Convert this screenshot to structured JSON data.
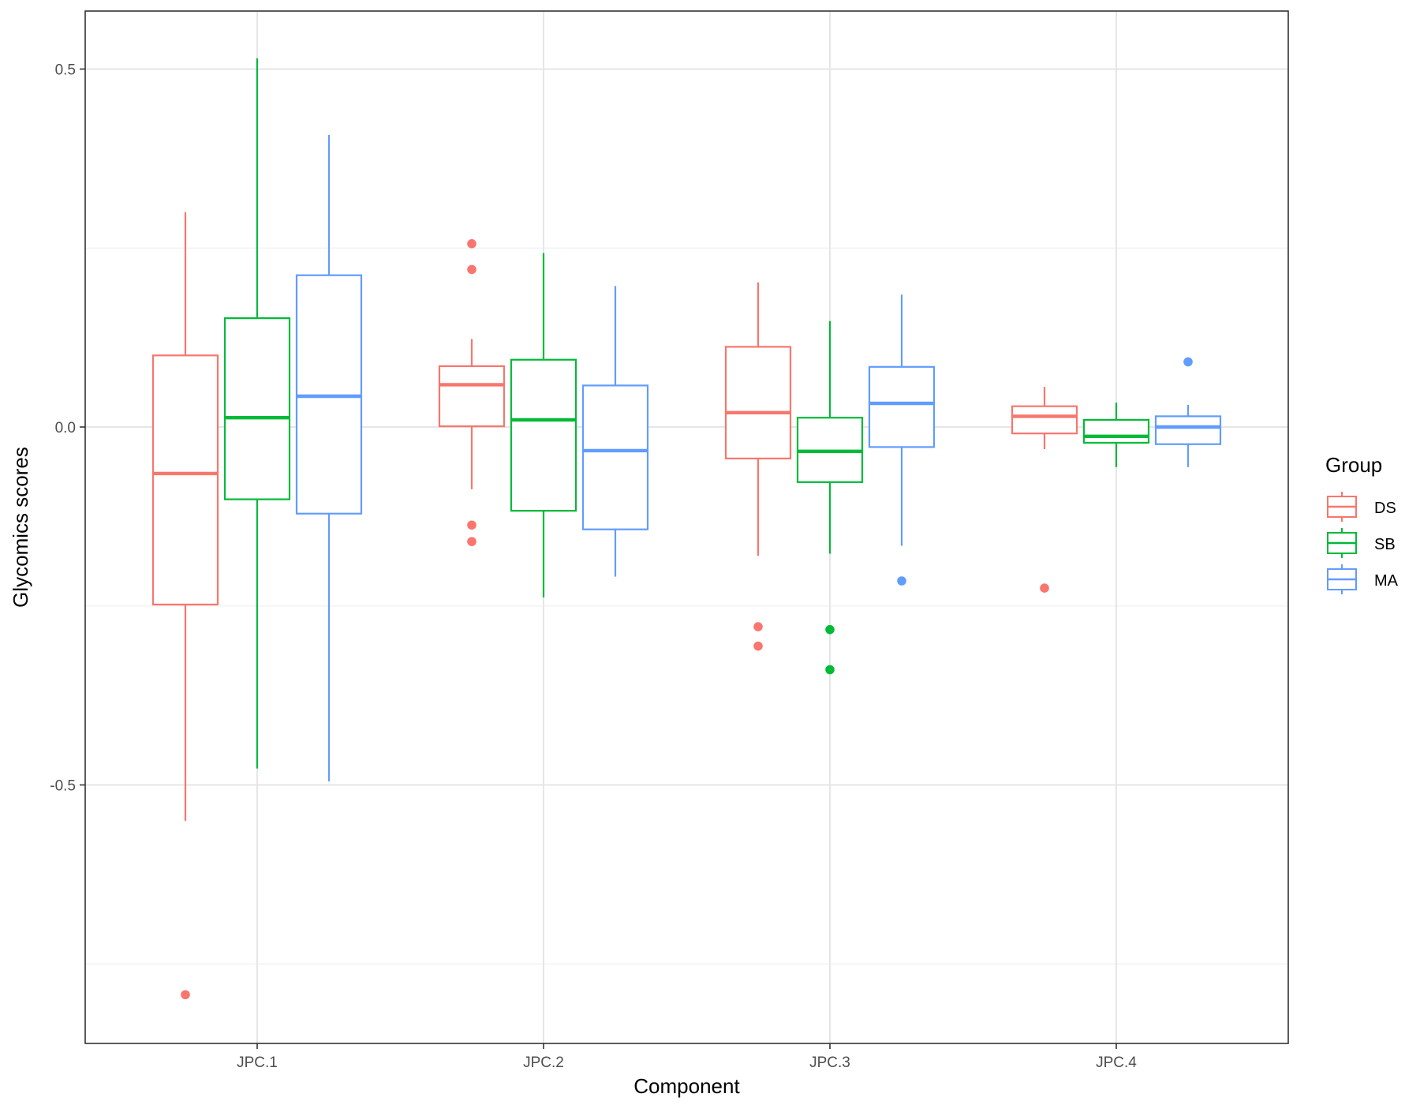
{
  "chart_data": {
    "type": "box",
    "xlabel": "Component",
    "ylabel": "Glycomics scores",
    "categories": [
      "JPC.1",
      "JPC.2",
      "JPC.3",
      "JPC.4"
    ],
    "y_ticks": [
      {
        "value": 0.5,
        "label": "0.5"
      },
      {
        "value": 0.0,
        "label": "0.0"
      },
      {
        "value": -0.5,
        "label": "-0.5"
      }
    ],
    "y_minor_ticks": [
      0.25,
      -0.25,
      -0.75
    ],
    "ylim": [
      -0.86,
      0.58
    ],
    "grid": true,
    "legend": {
      "title": "Group",
      "position": "right"
    },
    "series": [
      {
        "name": "DS",
        "color": "#F8766D",
        "boxes": [
          {
            "category": "JPC.1",
            "whisker_low": -0.55,
            "q1": -0.248,
            "median": -0.065,
            "q3": 0.1,
            "whisker_high": 0.3,
            "outliers": [
              -0.793
            ]
          },
          {
            "category": "JPC.2",
            "whisker_low": -0.087,
            "q1": 0.001,
            "median": 0.059,
            "q3": 0.085,
            "whisker_high": 0.123,
            "outliers": [
              0.256,
              0.22,
              -0.137,
              -0.16
            ]
          },
          {
            "category": "JPC.3",
            "whisker_low": -0.18,
            "q1": -0.044,
            "median": 0.02,
            "q3": 0.112,
            "whisker_high": 0.202,
            "outliers": [
              -0.279,
              -0.306
            ]
          },
          {
            "category": "JPC.4",
            "whisker_low": -0.031,
            "q1": -0.009,
            "median": 0.015,
            "q3": 0.029,
            "whisker_high": 0.056,
            "outliers": [
              -0.225
            ]
          }
        ]
      },
      {
        "name": "SB",
        "color": "#00BA38",
        "boxes": [
          {
            "category": "JPC.1",
            "whisker_low": -0.477,
            "q1": -0.101,
            "median": 0.013,
            "q3": 0.152,
            "whisker_high": 0.515,
            "outliers": []
          },
          {
            "category": "JPC.2",
            "whisker_low": -0.238,
            "q1": -0.117,
            "median": 0.01,
            "q3": 0.094,
            "whisker_high": 0.243,
            "outliers": []
          },
          {
            "category": "JPC.3",
            "whisker_low": -0.177,
            "q1": -0.077,
            "median": -0.034,
            "q3": 0.013,
            "whisker_high": 0.148,
            "outliers": [
              -0.283,
              -0.339
            ]
          },
          {
            "category": "JPC.4",
            "whisker_low": -0.056,
            "q1": -0.022,
            "median": -0.013,
            "q3": 0.01,
            "whisker_high": 0.034,
            "outliers": []
          }
        ]
      },
      {
        "name": "MA",
        "color": "#619CFF",
        "boxes": [
          {
            "category": "JPC.1",
            "whisker_low": -0.495,
            "q1": -0.121,
            "median": 0.043,
            "q3": 0.212,
            "whisker_high": 0.408,
            "outliers": []
          },
          {
            "category": "JPC.2",
            "whisker_low": -0.209,
            "q1": -0.143,
            "median": -0.033,
            "q3": 0.058,
            "whisker_high": 0.197,
            "outliers": []
          },
          {
            "category": "JPC.3",
            "whisker_low": -0.166,
            "q1": -0.028,
            "median": 0.033,
            "q3": 0.084,
            "whisker_high": 0.185,
            "outliers": [
              -0.215
            ]
          },
          {
            "category": "JPC.4",
            "whisker_low": -0.056,
            "q1": -0.024,
            "median": 0.0,
            "q3": 0.015,
            "whisker_high": 0.031,
            "outliers": [
              0.091
            ]
          }
        ]
      }
    ]
  }
}
